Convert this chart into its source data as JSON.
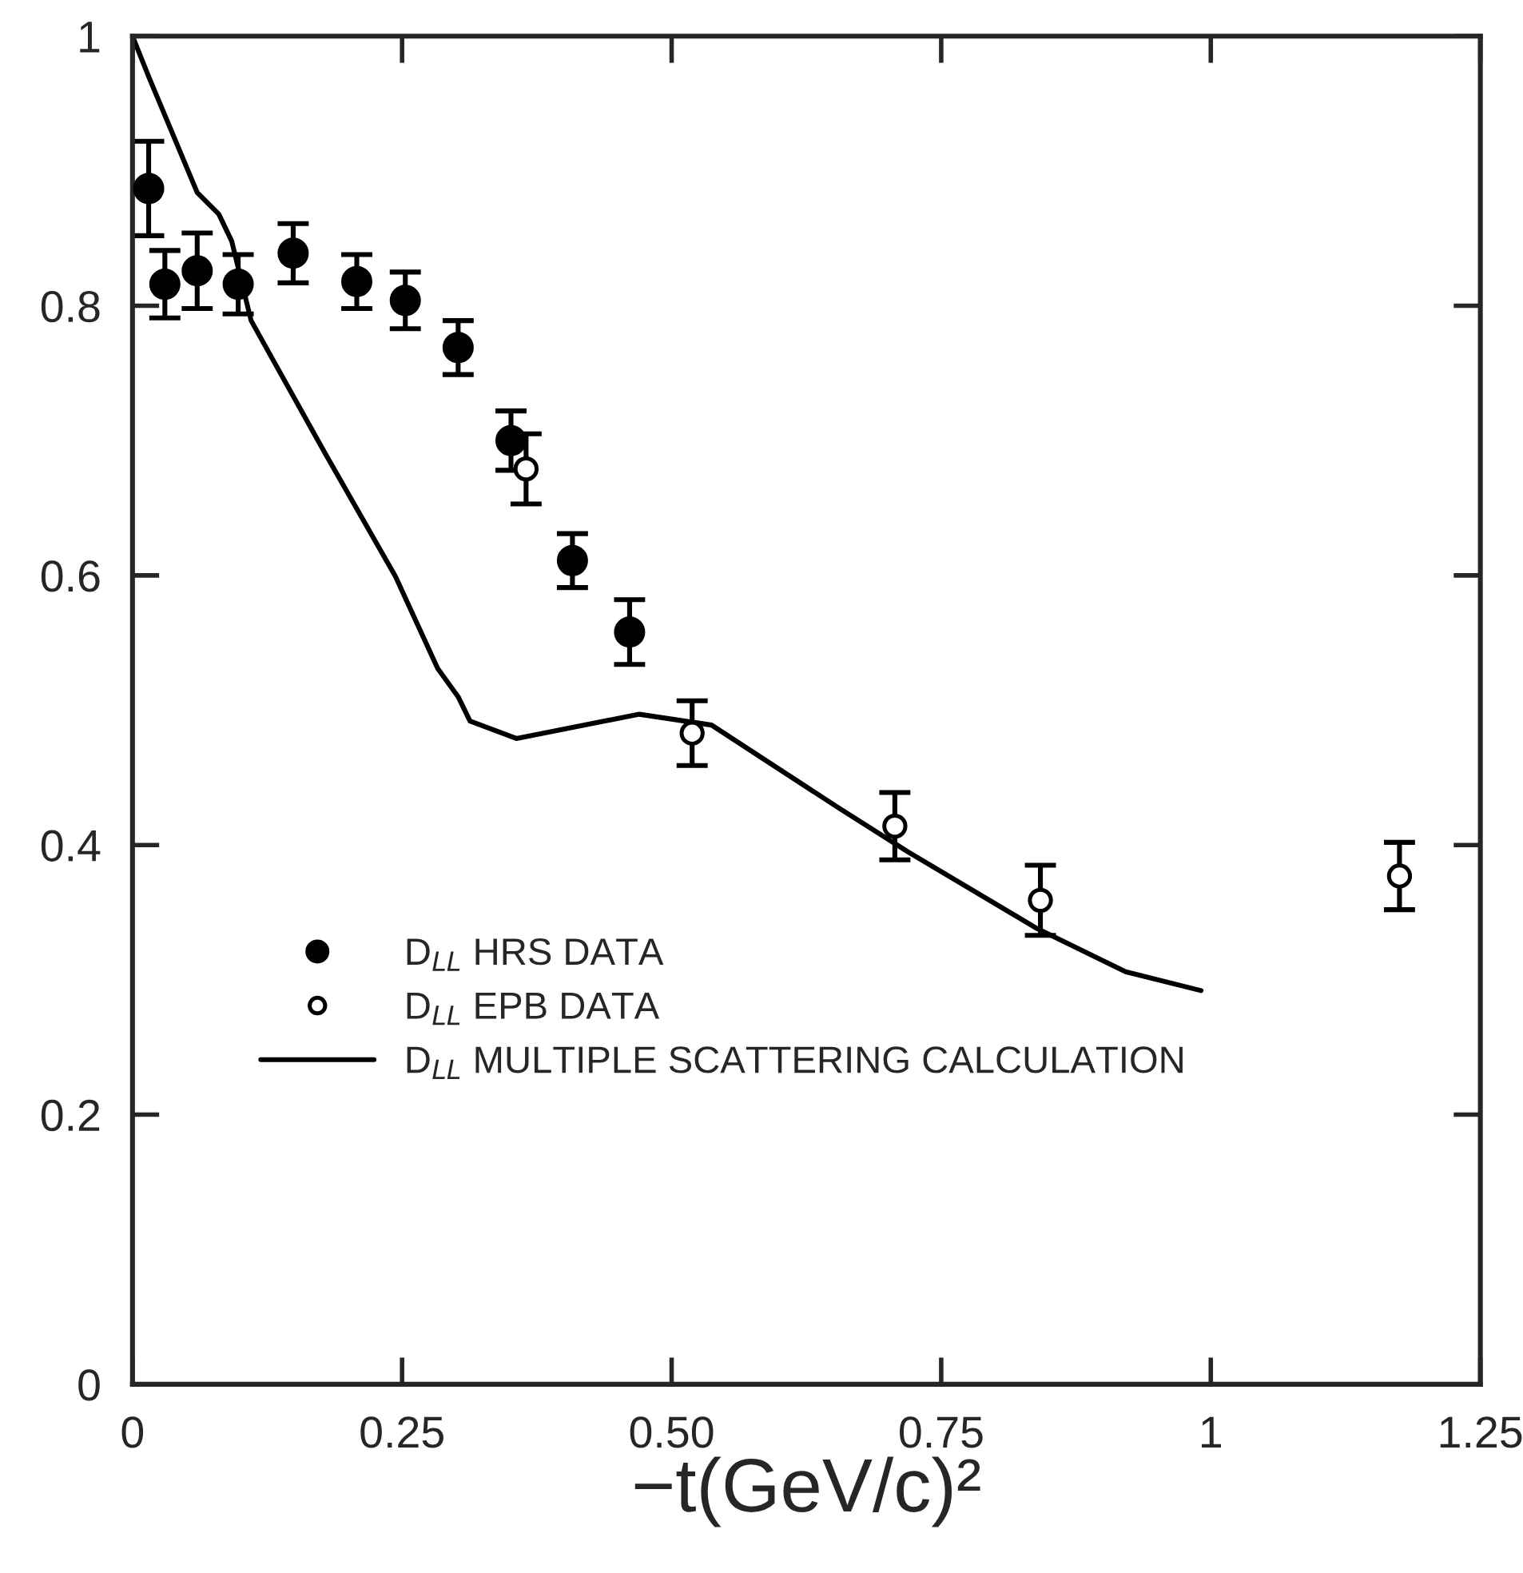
{
  "chart_data": {
    "type": "scatter",
    "xlabel": "−t(GeV/c)²",
    "xlim": [
      0,
      1.25
    ],
    "ylim": [
      0,
      1
    ],
    "xticks": [
      0,
      0.25,
      {
        "value": 0.5,
        "label": "0.50"
      },
      0.75,
      1,
      1.25
    ],
    "yticks": [
      0,
      0.2,
      0.4,
      0.6,
      0.8,
      1
    ],
    "grid": false,
    "legend": "bottom left",
    "series": [
      {
        "name": "D$_{LL}$ HRS DATA",
        "color": "#000000",
        "marker": "circle",
        "x": [
          0.015,
          0.03,
          0.06,
          0.098,
          0.149,
          0.208,
          0.253,
          0.302,
          0.351,
          0.408,
          0.461
        ],
        "values": [
          0.887,
          0.816,
          0.826,
          0.816,
          0.839,
          0.818,
          0.804,
          0.769,
          0.7,
          0.611,
          0.558
        ],
        "errors": [
          0.035,
          0.025,
          0.028,
          0.022,
          0.022,
          0.02,
          0.021,
          0.02,
          0.022,
          0.02,
          0.024
        ]
      },
      {
        "name": "D$_{LL}$ EPB DATA",
        "color": "#000000",
        "marker": "circle",
        "x": [
          0.365,
          0.519,
          0.707,
          0.842,
          1.175
        ],
        "values": [
          0.679,
          0.483,
          0.414,
          0.359,
          0.377
        ],
        "errors": [
          0.026,
          0.024,
          0.025,
          0.026,
          0.025
        ]
      },
      {
        "name": "D$_{LL}$ MULTIPLE SCATTERING CALCULATION",
        "type": "line",
        "color": "#000000",
        "line_style": "solid",
        "x": [
          0,
          0.015,
          0.06,
          0.08,
          0.092,
          0.11,
          0.179,
          0.244,
          0.283,
          0.302,
          0.313,
          0.356,
          0.47,
          0.537,
          0.652,
          0.719,
          0.839,
          0.921,
          0.991
        ],
        "values": [
          1,
          0.97,
          0.884,
          0.868,
          0.848,
          0.789,
          0.69,
          0.599,
          0.531,
          0.51,
          0.492,
          0.479,
          0.497,
          0.489,
          0.429,
          0.395,
          0.338,
          0.306,
          0.292
        ]
      }
    ]
  }
}
